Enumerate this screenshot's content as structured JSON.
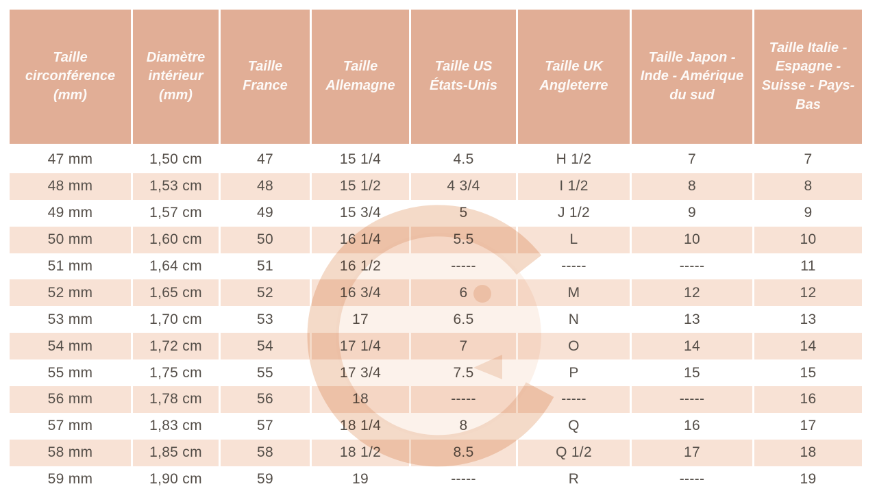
{
  "colors": {
    "header_bg": "#e1ae96",
    "header_text": "#fdfaf8",
    "row_alt_bg": "#f8e2d5",
    "row_bg": "#ffffff",
    "body_text": "#544e48",
    "watermark": "#f3d6c2",
    "watermark_soft": "#f9e8db"
  },
  "table": {
    "headers": [
      "Taille circonférence (mm)",
      "Diamètre intérieur (mm)",
      "Taille France",
      "Taille Allemagne",
      "Taille US États-Unis",
      "Taille UK Angleterre",
      "Taille Japon - Inde - Amérique du sud",
      "Taille Italie - Espagne - Suisse - Pays-Bas"
    ],
    "rows": [
      [
        "47 mm",
        "1,50 cm",
        "47",
        "15 1/4",
        "4.5",
        "H 1/2",
        "7",
        "7"
      ],
      [
        "48 mm",
        "1,53 cm",
        "48",
        "15 1/2",
        "4 3/4",
        "I 1/2",
        "8",
        "8"
      ],
      [
        "49 mm",
        "1,57 cm",
        "49",
        "15 3/4",
        "5",
        "J 1/2",
        "9",
        "9"
      ],
      [
        "50 mm",
        "1,60 cm",
        "50",
        "16 1/4",
        "5.5",
        "L",
        "10",
        "10"
      ],
      [
        "51 mm",
        "1,64 cm",
        "51",
        "16 1/2",
        "-----",
        "-----",
        "-----",
        "11"
      ],
      [
        "52 mm",
        "1,65 cm",
        "52",
        "16 3/4",
        "6",
        "M",
        "12",
        "12"
      ],
      [
        "53 mm",
        "1,70 cm",
        "53",
        "17",
        "6.5",
        "N",
        "13",
        "13"
      ],
      [
        "54 mm",
        "1,72 cm",
        "54",
        "17 1/4",
        "7",
        "O",
        "14",
        "14"
      ],
      [
        "55 mm",
        "1,75 cm",
        "55",
        "17 3/4",
        "7.5",
        "P",
        "15",
        "15"
      ],
      [
        "56 mm",
        "1,78 cm",
        "56",
        "18",
        "-----",
        "-----",
        "-----",
        "16"
      ],
      [
        "57 mm",
        "1,83 cm",
        "57",
        "18 1/4",
        "8",
        "Q",
        "16",
        "17"
      ],
      [
        "58 mm",
        "1,85 cm",
        "58",
        "18 1/2",
        "8.5",
        "Q 1/2",
        "17",
        "18"
      ],
      [
        "59 mm",
        "1,90 cm",
        "59",
        "19",
        "-----",
        "R",
        "-----",
        "19"
      ]
    ]
  },
  "watermark": {
    "icon": "g-logo-watermark"
  }
}
